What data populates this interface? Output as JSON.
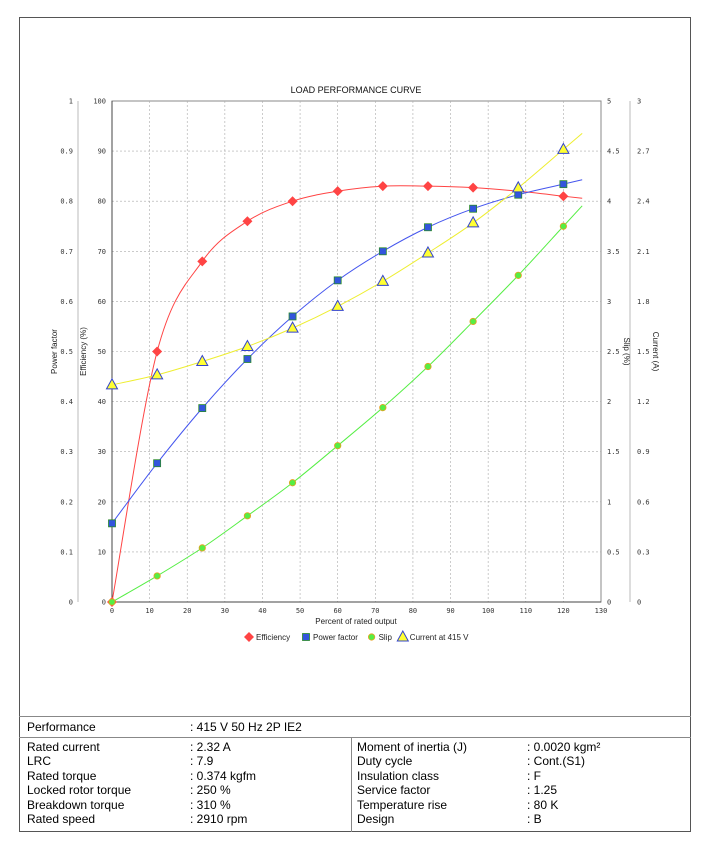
{
  "chart_data": {
    "type": "line",
    "title": "LOAD PERFORMANCE CURVE",
    "xlabel": "Percent of rated output",
    "xlim": [
      0,
      130
    ],
    "x_ticks": [
      "0",
      "10",
      "20",
      "30",
      "40",
      "50",
      "60",
      "70",
      "80",
      "90",
      "100",
      "110",
      "120",
      "130"
    ],
    "grid": true,
    "legend_position": "bottom",
    "axes": {
      "power_factor": {
        "label": "Power factor",
        "range": [
          0,
          1
        ],
        "ticks": [
          "0",
          "0.1",
          "0.2",
          "0.3",
          "0.4",
          "0.5",
          "0.6",
          "0.7",
          "0.8",
          "0.9",
          "1"
        ]
      },
      "efficiency": {
        "label": "Efficiency (%)",
        "range": [
          0,
          100
        ],
        "ticks": [
          "0",
          "10",
          "20",
          "30",
          "40",
          "50",
          "60",
          "70",
          "80",
          "90",
          "100"
        ]
      },
      "slip": {
        "label": "Slip (%)",
        "range": [
          0,
          5
        ],
        "ticks": [
          "0",
          "0.5",
          "1",
          "1.5",
          "2",
          "2.5",
          "3",
          "3.5",
          "4",
          "4.5",
          "5"
        ]
      },
      "current": {
        "label": "Current (A)",
        "range": [
          0,
          3
        ],
        "ticks": [
          "0",
          "0.3",
          "0.6",
          "0.9",
          "1.2",
          "1.5",
          "1.8",
          "2.1",
          "2.4",
          "2.7",
          "3"
        ]
      }
    },
    "x": [
      0,
      12,
      24,
      36,
      48,
      60,
      72,
      84,
      96,
      108,
      120
    ],
    "series": [
      {
        "name": "Efficiency",
        "axis": "efficiency",
        "color": "#ff4444",
        "marker": "diamond",
        "values": [
          0,
          50,
          68,
          76,
          80,
          82,
          83,
          83,
          82.7,
          82,
          81
        ]
      },
      {
        "name": "Power factor",
        "axis": "power_factor",
        "color": "#4455ee",
        "marker": "square",
        "values": [
          0.157,
          0.277,
          0.387,
          0.485,
          0.57,
          0.642,
          0.7,
          0.748,
          0.785,
          0.813,
          0.834
        ]
      },
      {
        "name": "Slip",
        "axis": "slip",
        "color": "#55ee44",
        "marker": "circle",
        "values": [
          0,
          0.26,
          0.54,
          0.86,
          1.19,
          1.56,
          1.94,
          2.35,
          2.8,
          3.26,
          3.75
        ]
      },
      {
        "name": "Current at 415 V",
        "axis": "current",
        "color": "#ffff33",
        "marker": "triangle",
        "values": [
          1.3,
          1.36,
          1.44,
          1.53,
          1.64,
          1.77,
          1.92,
          2.09,
          2.27,
          2.48,
          2.71
        ]
      }
    ]
  },
  "specs": {
    "performance_label": "Performance",
    "performance_value": ": 415 V 50 Hz 2P IE2",
    "left": [
      {
        "label": "Rated current",
        "value": ": 2.32 A"
      },
      {
        "label": "LRC",
        "value": ": 7.9"
      },
      {
        "label": "Rated torque",
        "value": ": 0.374 kgfm"
      },
      {
        "label": "Locked rotor torque",
        "value": ": 250 %"
      },
      {
        "label": "Breakdown torque",
        "value": ": 310 %"
      },
      {
        "label": "Rated speed",
        "value": ": 2910 rpm"
      }
    ],
    "right": [
      {
        "label": "Moment of inertia (J)",
        "value": ": 0.0020 kgm²"
      },
      {
        "label": "Duty cycle",
        "value": ": Cont.(S1)"
      },
      {
        "label": "Insulation class",
        "value": ": F"
      },
      {
        "label": "Service factor",
        "value": ": 1.25"
      },
      {
        "label": "Temperature rise",
        "value": ": 80 K"
      },
      {
        "label": "Design",
        "value": ": B"
      }
    ]
  }
}
